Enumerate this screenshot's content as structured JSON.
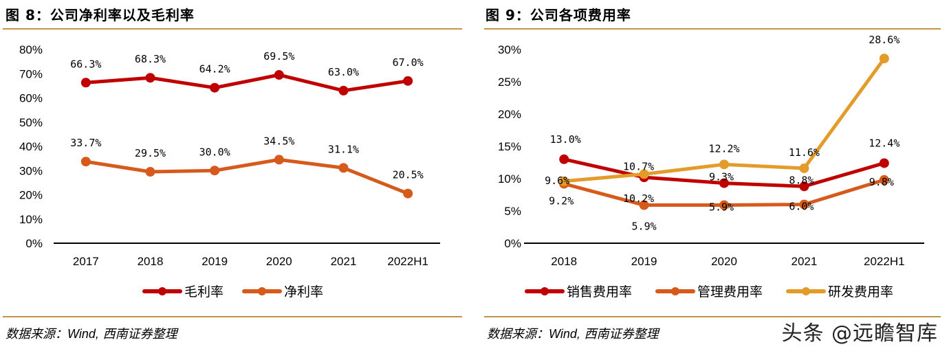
{
  "charts_meta": {
    "left": {
      "title": "图 8：公司净利率以及毛利率",
      "source_prefix": "数据来源：",
      "source_wind": "Wind,",
      "source_suffix": " 西南证券整理"
    },
    "right": {
      "title": "图 9：公司各项费用率",
      "source_prefix": "数据来源：",
      "source_wind": "Wind,",
      "source_suffix": " 西南证券整理"
    },
    "watermark": "头条 @远瞻智库"
  },
  "chart_data": [
    {
      "type": "line",
      "title": "图 8：公司净利率以及毛利率",
      "xlabel": "",
      "ylabel": "",
      "categories": [
        "2017",
        "2018",
        "2019",
        "2020",
        "2021",
        "2022H1"
      ],
      "ylim": [
        0,
        80
      ],
      "yticks": [
        0,
        10,
        20,
        30,
        40,
        50,
        60,
        70,
        80
      ],
      "ytick_labels": [
        "0%",
        "10%",
        "20%",
        "30%",
        "40%",
        "50%",
        "60%",
        "70%",
        "80%"
      ],
      "grid": false,
      "legend_position": "bottom-center",
      "series": [
        {
          "name": "毛利率",
          "color": "#C00000",
          "values": [
            66.3,
            68.3,
            64.2,
            69.5,
            63.0,
            67.0
          ],
          "labels": [
            "66.3%",
            "68.3%",
            "64.2%",
            "69.5%",
            "63.0%",
            "67.0%"
          ]
        },
        {
          "name": "净利率",
          "color": "#D65A1C",
          "values": [
            33.7,
            29.5,
            30.0,
            34.5,
            31.1,
            20.5
          ],
          "labels": [
            "33.7%",
            "29.5%",
            "30.0%",
            "34.5%",
            "31.1%",
            "20.5%"
          ]
        }
      ]
    },
    {
      "type": "line",
      "title": "图 9：公司各项费用率",
      "xlabel": "",
      "ylabel": "",
      "categories": [
        "2018",
        "2019",
        "2020",
        "2021",
        "2022H1"
      ],
      "ylim": [
        0,
        30
      ],
      "yticks": [
        0,
        5,
        10,
        15,
        20,
        25,
        30
      ],
      "ytick_labels": [
        "0%",
        "5%",
        "10%",
        "15%",
        "20%",
        "25%",
        "30%"
      ],
      "grid": false,
      "legend_position": "bottom-center",
      "series": [
        {
          "name": "销售费用率",
          "color": "#C00000",
          "values": [
            13.0,
            10.2,
            9.3,
            8.8,
            12.4
          ],
          "labels": [
            "13.0%",
            "10.2%",
            "9.3%",
            "8.8%",
            "12.4%"
          ]
        },
        {
          "name": "管理费用率",
          "color": "#D65A1C",
          "values": [
            9.2,
            5.9,
            5.9,
            6.0,
            9.8
          ],
          "labels": [
            "9.2%",
            "5.9%",
            "5.9%",
            "6.0%",
            "9.8%"
          ]
        },
        {
          "name": "研发费用率",
          "color": "#E39B2A",
          "values": [
            9.6,
            10.7,
            12.2,
            11.6,
            28.6
          ],
          "labels": [
            "9.6%",
            "10.7%",
            "12.2%",
            "11.6%",
            "28.6%"
          ]
        }
      ]
    }
  ]
}
